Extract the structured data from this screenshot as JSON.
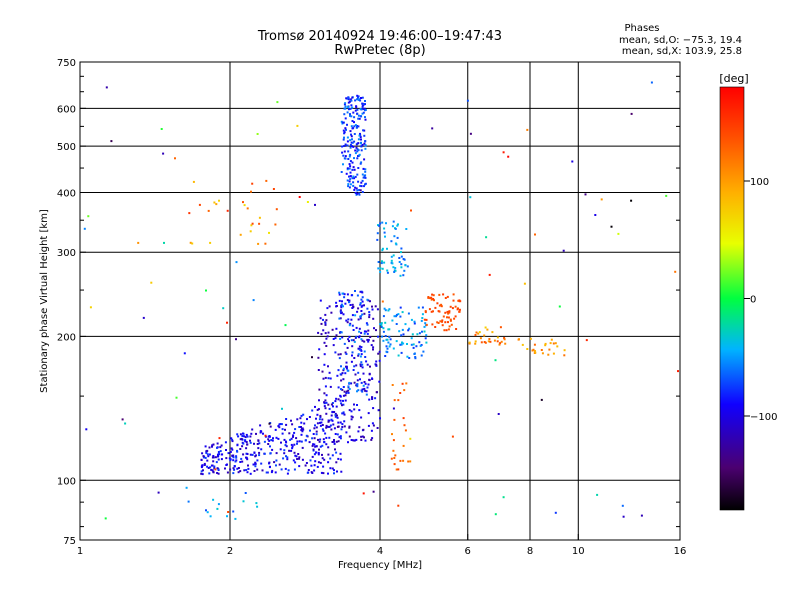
{
  "chart_data": {
    "type": "scatter",
    "title": "Tromsø 20140924 19:46:00–19:47:43",
    "subtitle": "RwPretec (8p)",
    "xlabel": "Frequency [MHz]",
    "ylabel": "Stationary phase Virtual Height [km]",
    "x_scale": "log",
    "y_scale": "log",
    "xlim": [
      1,
      16
    ],
    "ylim": [
      75,
      750
    ],
    "x_ticks": [
      1,
      2,
      4,
      6,
      8,
      10,
      16
    ],
    "x_tick_labels": [
      "1",
      "2",
      "4",
      "6",
      "8",
      "10",
      "16"
    ],
    "y_ticks": [
      75,
      100,
      200,
      300,
      400,
      500,
      600,
      750
    ],
    "y_tick_labels": [
      "75",
      "100",
      "200",
      "300",
      "400",
      "500",
      "600",
      "750"
    ],
    "grid": true,
    "phases_header": "Phases",
    "phases_o": "mean, sd,O: −75.3, 19.4",
    "phases_x": "mean, sd,X: 103.9, 25.8",
    "colorbar": {
      "label": "[deg]",
      "range": [
        -180,
        180
      ],
      "ticks": [
        100,
        0,
        -100
      ],
      "tick_labels": [
        "100",
        "0",
        "−100"
      ]
    },
    "clusters": [
      {
        "x": [
          1.75,
          3.4
        ],
        "y": [
          103,
          150
        ],
        "phase": [
          -120,
          -70
        ],
        "n": 420
      },
      {
        "x": [
          3.0,
          4.0
        ],
        "y": [
          120,
          240
        ],
        "phase": [
          -130,
          -80
        ],
        "n": 260
      },
      {
        "x": [
          3.3,
          3.8
        ],
        "y": [
          150,
          250
        ],
        "phase": [
          -100,
          -50
        ],
        "n": 100
      },
      {
        "x": [
          3.35,
          3.75
        ],
        "y": [
          395,
          640
        ],
        "phase": [
          -100,
          -50
        ],
        "n": 220
      },
      {
        "x": [
          3.95,
          4.55
        ],
        "y": [
          265,
          350
        ],
        "phase": [
          -70,
          -30
        ],
        "n": 60
      },
      {
        "x": [
          4.0,
          5.0
        ],
        "y": [
          180,
          230
        ],
        "phase": [
          -80,
          -30
        ],
        "n": 90
      },
      {
        "x": [
          4.9,
          5.8
        ],
        "y": [
          205,
          245
        ],
        "phase": [
          130,
          150
        ],
        "n": 70
      },
      {
        "x": [
          6.0,
          7.2
        ],
        "y": [
          192,
          210
        ],
        "phase": [
          70,
          140
        ],
        "n": 30
      },
      {
        "x": [
          7.5,
          9.5
        ],
        "y": [
          180,
          200
        ],
        "phase": [
          80,
          130
        ],
        "n": 25
      },
      {
        "x": [
          4.2,
          4.6
        ],
        "y": [
          105,
          160
        ],
        "phase": [
          110,
          150
        ],
        "n": 25
      },
      {
        "x": [
          1.65,
          2.5
        ],
        "y": [
          310,
          430
        ],
        "phase": [
          60,
          160
        ],
        "n": 28
      },
      {
        "x": [
          1.65,
          2.3
        ],
        "y": [
          82,
          95
        ],
        "phase": [
          -70,
          -30
        ],
        "n": 14
      },
      {
        "x": [
          1.0,
          16.0
        ],
        "y": [
          80,
          700
        ],
        "phase": [
          -180,
          180
        ],
        "n": 90
      }
    ]
  }
}
